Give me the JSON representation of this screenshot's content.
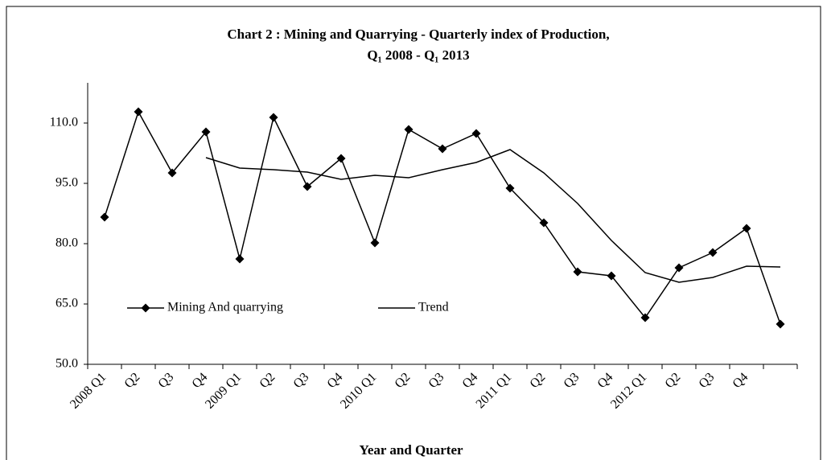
{
  "chart_data": {
    "type": "line",
    "title": "Chart 2 : Mining and Quarrying - Quarterly index of Production,",
    "subtitle": "Q₁ 2008 - Q₁ 2013",
    "x_label": "Year and Quarter",
    "categories": [
      "2008 Q1",
      "Q2",
      "Q3",
      "Q4",
      "2009 Q1",
      "Q2",
      "Q3",
      "Q4",
      "2010 Q1",
      "Q2",
      "Q3",
      "Q4",
      "2011 Q1",
      "Q2",
      "Q3",
      "Q4",
      "2012 Q1",
      "Q2",
      "Q3",
      "Q4",
      null
    ],
    "series": [
      {
        "name": "Mining And quarrying",
        "color": "#000000",
        "marker": "diamond",
        "values": [
          86.6,
          112.8,
          97.6,
          107.8,
          76.2,
          111.4,
          94.2,
          101.2,
          80.2,
          108.4,
          103.6,
          107.4,
          93.8,
          85.2,
          73.0,
          72.0,
          61.6,
          74.0,
          77.8,
          83.8,
          60.0
        ]
      },
      {
        "name": "Trend",
        "color": "#000000",
        "values": [
          null,
          null,
          null,
          101.4,
          98.8,
          98.4,
          97.8,
          96.0,
          97.0,
          96.4,
          98.4,
          100.2,
          103.4,
          97.6,
          90.0,
          80.8,
          72.8,
          70.4,
          71.6,
          74.4,
          74.2
        ]
      }
    ],
    "ylim": [
      50,
      120
    ],
    "yticks": [
      {
        "value": 50,
        "label": "50.0"
      },
      {
        "value": 65,
        "label": "65.0"
      },
      {
        "value": 80,
        "label": "80.0"
      },
      {
        "value": 95,
        "label": "95.0"
      },
      {
        "value": 110,
        "label": "110.0"
      }
    ],
    "grid": false
  }
}
